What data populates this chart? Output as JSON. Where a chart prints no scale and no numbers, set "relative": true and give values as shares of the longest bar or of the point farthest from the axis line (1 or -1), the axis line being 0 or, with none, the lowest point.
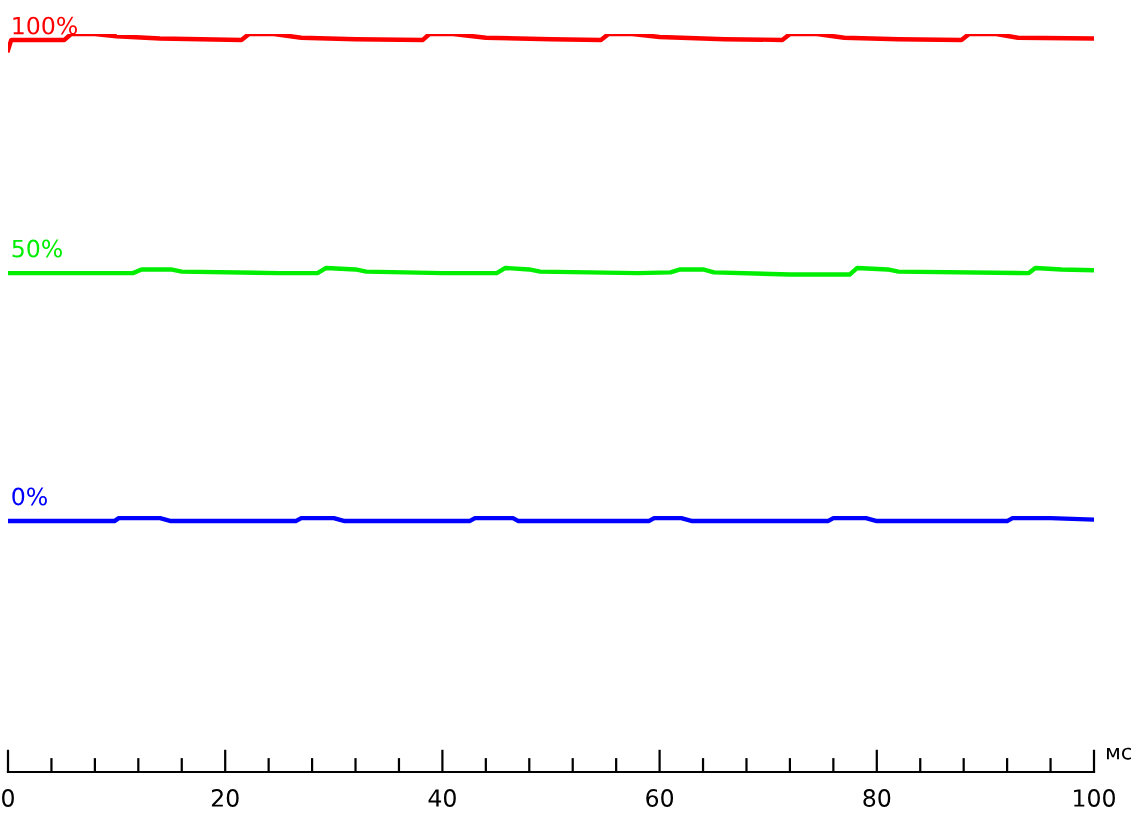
{
  "chart_data": {
    "type": "line",
    "relative": true,
    "xlabel": "мс",
    "xlim": [
      0,
      100
    ],
    "xticks": [
      0,
      {
        "value": 4,
        "label": null
      },
      {
        "value": 8,
        "label": null
      },
      {
        "value": 12,
        "label": null
      },
      {
        "value": 16,
        "label": null
      },
      20,
      {
        "value": 24,
        "label": null
      },
      {
        "value": 28,
        "label": null
      },
      {
        "value": 32,
        "label": null
      },
      {
        "value": 36,
        "label": null
      },
      40,
      {
        "value": 44,
        "label": null
      },
      {
        "value": 48,
        "label": null
      },
      {
        "value": 52,
        "label": null
      },
      {
        "value": 56,
        "label": null
      },
      60,
      {
        "value": 64,
        "label": null
      },
      {
        "value": 68,
        "label": null
      },
      {
        "value": 72,
        "label": null
      },
      {
        "value": 76,
        "label": null
      },
      80,
      {
        "value": 84,
        "label": null
      },
      {
        "value": 88,
        "label": null
      },
      {
        "value": 92,
        "label": null
      },
      {
        "value": 96,
        "label": null
      },
      100
    ],
    "tick_labels": "x",
    "grid": false,
    "legend": false,
    "marker": "none",
    "line_style": "solid",
    "series": [
      {
        "name": "100%",
        "color": "#ff0000",
        "x": [
          0,
          0.3,
          5.2,
          5.8,
          8,
          10,
          14,
          21.5,
          22.2,
          24.5,
          27,
          32,
          38.2,
          38.8,
          41,
          44,
          50,
          54.6,
          55.3,
          57.5,
          60,
          66,
          71.3,
          72,
          74.5,
          77,
          82,
          87.8,
          88.5,
          91,
          93,
          100
        ],
        "values": [
          0.978,
          0.992,
          0.992,
          1.0,
          1.0,
          0.997,
          0.994,
          0.992,
          1.0,
          1.0,
          0.995,
          0.993,
          0.992,
          1.0,
          1.0,
          0.995,
          0.993,
          0.992,
          1.0,
          1.0,
          0.996,
          0.993,
          0.992,
          1.0,
          1.0,
          0.995,
          0.993,
          0.992,
          1.0,
          1.0,
          0.995,
          0.994
        ]
      },
      {
        "name": "50%",
        "color": "#00ee00",
        "x": [
          0,
          11.5,
          12.3,
          15,
          16,
          25,
          28.5,
          29.3,
          32,
          33,
          40,
          45,
          45.8,
          48,
          49,
          58,
          61,
          61.9,
          64,
          65,
          72,
          77.5,
          78.2,
          81,
          82,
          94,
          94.6,
          97,
          100
        ],
        "values": [
          0.676,
          0.676,
          0.681,
          0.681,
          0.678,
          0.676,
          0.676,
          0.683,
          0.681,
          0.678,
          0.676,
          0.676,
          0.683,
          0.681,
          0.678,
          0.676,
          0.677,
          0.681,
          0.681,
          0.677,
          0.674,
          0.674,
          0.683,
          0.681,
          0.678,
          0.676,
          0.683,
          0.681,
          0.68
        ]
      },
      {
        "name": "0%",
        "color": "#0000ff",
        "x": [
          0,
          9.8,
          10.2,
          14,
          15,
          26.5,
          27,
          30,
          31,
          42.5,
          43,
          46.5,
          47,
          59,
          59.5,
          62,
          63,
          75.5,
          76,
          79,
          80,
          92,
          92.5,
          96,
          100
        ],
        "values": [
          0.34,
          0.34,
          0.344,
          0.344,
          0.34,
          0.34,
          0.344,
          0.344,
          0.34,
          0.34,
          0.344,
          0.344,
          0.34,
          0.34,
          0.344,
          0.344,
          0.34,
          0.34,
          0.344,
          0.344,
          0.34,
          0.34,
          0.344,
          0.344,
          0.342
        ]
      }
    ]
  }
}
